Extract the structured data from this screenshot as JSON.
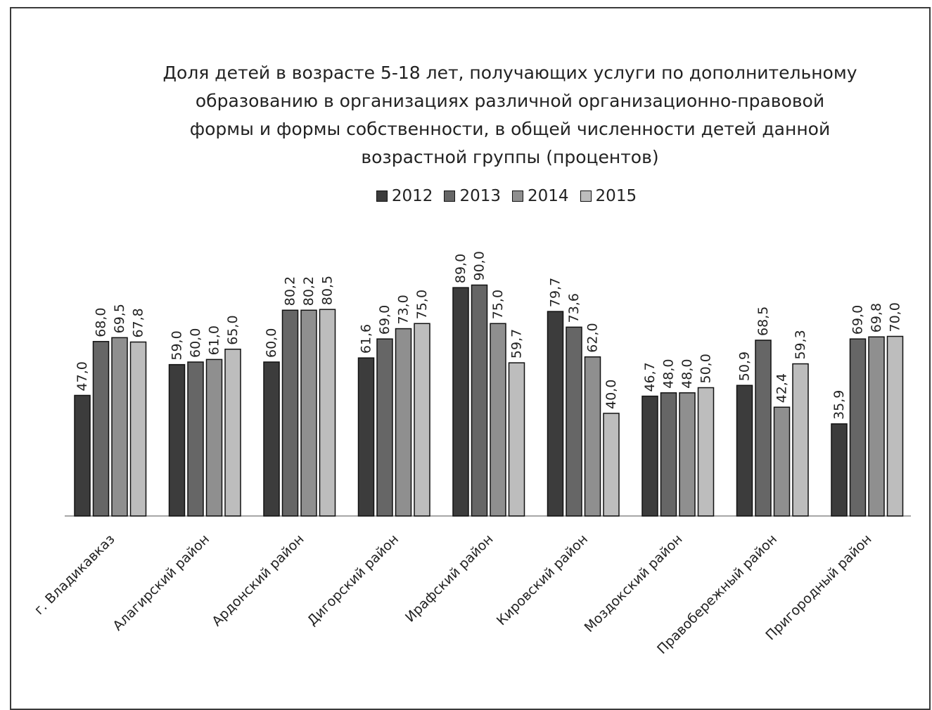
{
  "chart_data": {
    "type": "bar",
    "title_lines": [
      "Доля детей в возрасте 5-18 лет, получающих услуги по дополнительному",
      "образованию в организациях различной организационно-правовой",
      "формы и формы собственности, в общей численности детей данной",
      "возрастной группы (процентов)"
    ],
    "categories": [
      "г. Владикавказ",
      "Алагирский район",
      "Ардонский район",
      "Дигорский район",
      "Ирафский район",
      "Кировский район",
      "Моздокский район",
      "Правобережный район",
      "Пригородный район"
    ],
    "series": [
      {
        "name": "2012",
        "color": "#3c3c3c",
        "values": [
          47.0,
          59.0,
          60.0,
          61.6,
          89.0,
          79.7,
          46.7,
          50.9,
          35.9
        ],
        "labels": [
          "47,0",
          "59,0",
          "60,0",
          "61,6",
          "89,0",
          "79,7",
          "46,7",
          "50,9",
          "35,9"
        ]
      },
      {
        "name": "2013",
        "color": "#666666",
        "values": [
          68.0,
          60.0,
          80.2,
          69.0,
          90.0,
          73.6,
          48.0,
          68.5,
          69.0
        ],
        "labels": [
          "68,0",
          "60,0",
          "80,2",
          "69,0",
          "90,0",
          "73,6",
          "48,0",
          "68,5",
          "69,0"
        ]
      },
      {
        "name": "2014",
        "color": "#8f8f8f",
        "values": [
          69.5,
          61.0,
          80.2,
          73.0,
          75.0,
          62.0,
          48.0,
          42.4,
          69.8
        ],
        "labels": [
          "69,5",
          "61,0",
          "80,2",
          "73,0",
          "75,0",
          "62,0",
          "48,0",
          "42,4",
          "69,8"
        ]
      },
      {
        "name": "2015",
        "color": "#bdbdbd",
        "values": [
          67.8,
          65.0,
          80.5,
          75.0,
          59.7,
          40.0,
          50.0,
          59.3,
          70.0
        ],
        "labels": [
          "67,8",
          "65,0",
          "80,5",
          "75,0",
          "59,7",
          "40,0",
          "50,0",
          "59,3",
          "70,0"
        ]
      }
    ],
    "ylim": [
      0,
      100
    ],
    "grid": false,
    "legend_position": "top"
  }
}
